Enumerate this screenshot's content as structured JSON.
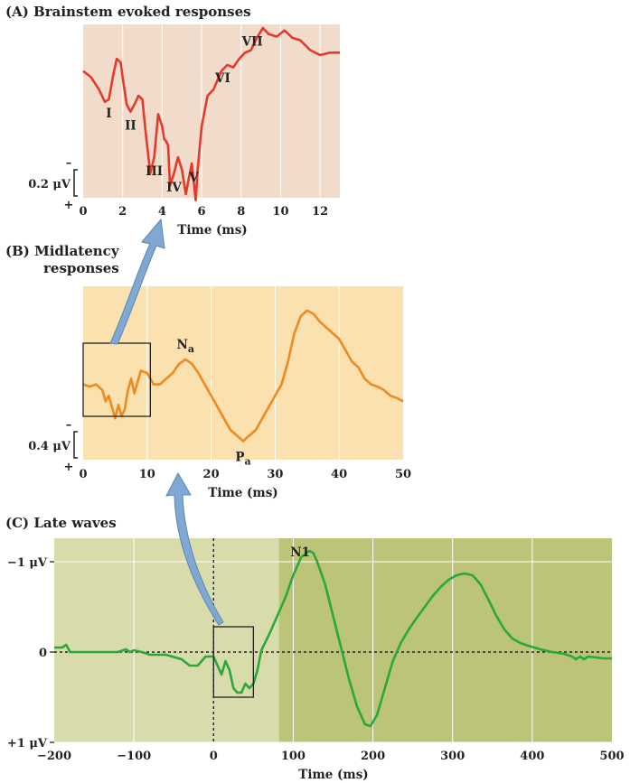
{
  "colors": {
    "panel_a_bg": "#f1dccb",
    "panel_a_line": "#e4392c",
    "panel_b_bg": "#fbe0b0",
    "panel_b_line": "#ef8a1e",
    "panel_c_bg_left": "#d8dcaa",
    "panel_c_bg_right": "#bcc47a",
    "panel_c_line": "#2aa83a",
    "arrow": "#7fa9d2",
    "grid": "#ffffff"
  },
  "chart_data": [
    {
      "type": "line",
      "title": "(A)  Brainstem evoked responses",
      "xlabel": "Time (ms)",
      "xlim": [
        0,
        13
      ],
      "x_ticks": [
        "0",
        "2",
        "4",
        "6",
        "8",
        "10",
        "12"
      ],
      "scale_bar": {
        "label": "0.2 μV",
        "top_sign": "–",
        "bottom_sign": "+"
      },
      "ylim": [
        -0.55,
        0.8
      ],
      "series": [
        {
          "x": [
            0,
            0.4,
            0.8,
            1.1,
            1.3,
            1.5,
            1.7,
            1.9,
            2.0,
            2.2,
            2.4,
            2.6,
            2.8,
            3.0,
            3.2,
            3.4,
            3.6,
            3.8,
            4.0,
            4.1,
            4.2,
            4.3,
            4.4,
            4.6,
            4.8,
            5.0,
            5.2,
            5.4,
            5.5,
            5.7,
            5.8,
            6.0,
            6.3,
            6.6,
            7.0,
            7.3,
            7.6,
            7.9,
            8.2,
            8.5,
            8.8,
            9.1,
            9.4,
            9.8,
            10.2,
            10.6,
            11.0,
            11.5,
            12.0,
            12.5,
            13.0
          ],
          "y": [
            0.45,
            0.4,
            0.3,
            0.2,
            0.22,
            0.4,
            0.55,
            0.52,
            0.4,
            0.18,
            0.12,
            0.18,
            0.25,
            0.22,
            -0.1,
            -0.38,
            -0.25,
            0.1,
            0.0,
            -0.1,
            -0.12,
            -0.15,
            -0.48,
            -0.38,
            -0.25,
            -0.35,
            -0.55,
            -0.38,
            -0.3,
            -0.6,
            -0.35,
            0.0,
            0.25,
            0.3,
            0.45,
            0.5,
            0.48,
            0.55,
            0.6,
            0.62,
            0.72,
            0.8,
            0.75,
            0.73,
            0.78,
            0.72,
            0.7,
            0.62,
            0.58,
            0.6,
            0.6
          ]
        }
      ],
      "annotations": [
        {
          "label": "I",
          "x": 1.3
        },
        {
          "label": "II",
          "x": 2.4
        },
        {
          "label": "III",
          "x": 3.6
        },
        {
          "label": "IV",
          "x": 4.6
        },
        {
          "label": "V",
          "x": 5.6
        },
        {
          "label": "VI",
          "x": 6.7
        },
        {
          "label": "VII",
          "x": 8.2
        }
      ]
    },
    {
      "type": "line",
      "title": "(B)  Midlatency",
      "title_line2": "responses",
      "xlabel": "Time (ms)",
      "xlim": [
        0,
        50
      ],
      "x_ticks": [
        "0",
        "10",
        "20",
        "30",
        "40",
        "50"
      ],
      "scale_bar": {
        "label": "0.4 μV",
        "top_sign": "–",
        "bottom_sign": "+"
      },
      "ylim": [
        -0.6,
        0.8
      ],
      "series": [
        {
          "x": [
            0,
            1,
            2,
            3,
            3.5,
            4,
            4.5,
            5,
            5.5,
            6,
            6.5,
            7,
            7.5,
            8,
            8.5,
            9,
            10,
            11,
            12,
            13,
            14,
            15,
            16,
            17,
            18,
            19,
            20,
            21,
            22,
            23,
            24,
            25,
            26,
            27,
            28,
            29,
            30,
            31,
            32,
            33,
            34,
            35,
            36,
            37,
            38,
            39,
            40,
            41,
            42,
            43,
            44,
            45,
            46,
            47,
            48,
            49,
            50
          ],
          "y": [
            0.0,
            -0.02,
            0.0,
            -0.05,
            -0.15,
            -0.1,
            -0.2,
            -0.3,
            -0.18,
            -0.28,
            -0.22,
            -0.05,
            0.05,
            -0.08,
            0.02,
            0.12,
            0.1,
            0.0,
            0.0,
            0.05,
            0.1,
            0.18,
            0.22,
            0.18,
            0.1,
            0.0,
            -0.1,
            -0.2,
            -0.3,
            -0.4,
            -0.45,
            -0.5,
            -0.45,
            -0.4,
            -0.3,
            -0.2,
            -0.1,
            0.0,
            0.2,
            0.45,
            0.6,
            0.65,
            0.62,
            0.55,
            0.5,
            0.45,
            0.4,
            0.3,
            0.2,
            0.15,
            0.05,
            0.0,
            -0.02,
            -0.05,
            -0.1,
            -0.12,
            -0.15
          ]
        }
      ],
      "annotations": [
        {
          "label": "N",
          "subscript": "a",
          "x": 16
        },
        {
          "label": "P",
          "subscript": "a",
          "x": 25
        }
      ],
      "inset_box": {
        "x_from": 0,
        "x_to": 10.5
      }
    },
    {
      "type": "line",
      "title": "(C)  Late waves",
      "xlabel": "Time (ms)",
      "xlim": [
        -200,
        500
      ],
      "ylim": [
        1,
        -1.1
      ],
      "y_inverted": true,
      "x_ticks": [
        "−200",
        "−100",
        "0",
        "100",
        "200",
        "300",
        "400",
        "500"
      ],
      "y_ticks": [
        {
          "value": -1,
          "label": "−1 μV"
        },
        {
          "value": 0,
          "label": "0"
        },
        {
          "value": 1,
          "label": "+1 μV"
        }
      ],
      "stimulus_onset": 0,
      "shade_boundary_x": 82,
      "series": [
        {
          "x": [
            -200,
            -190,
            -185,
            -180,
            -170,
            -160,
            -150,
            -120,
            -110,
            -105,
            -100,
            -90,
            -80,
            -60,
            -40,
            -30,
            -20,
            -10,
            0,
            5,
            10,
            15,
            20,
            25,
            30,
            35,
            40,
            45,
            50,
            55,
            60,
            70,
            80,
            90,
            100,
            110,
            120,
            125,
            130,
            140,
            150,
            160,
            170,
            180,
            190,
            197,
            205,
            215,
            225,
            235,
            245,
            255,
            265,
            275,
            285,
            295,
            305,
            315,
            325,
            335,
            345,
            355,
            365,
            375,
            385,
            395,
            410,
            425,
            440,
            450,
            455,
            460,
            465,
            470,
            480,
            490,
            500
          ],
          "y": [
            -0.05,
            -0.05,
            -0.08,
            0.0,
            0.0,
            0.0,
            0.0,
            0.0,
            -0.03,
            0.0,
            -0.02,
            0.0,
            0.03,
            0.03,
            0.08,
            0.15,
            0.15,
            0.05,
            0.05,
            0.15,
            0.25,
            0.1,
            0.2,
            0.4,
            0.45,
            0.45,
            0.35,
            0.4,
            0.35,
            0.2,
            -0.02,
            -0.2,
            -0.4,
            -0.6,
            -0.85,
            -1.05,
            -1.12,
            -1.1,
            -1.0,
            -0.75,
            -0.4,
            -0.05,
            0.3,
            0.6,
            0.8,
            0.82,
            0.7,
            0.4,
            0.1,
            -0.1,
            -0.25,
            -0.38,
            -0.5,
            -0.62,
            -0.72,
            -0.8,
            -0.85,
            -0.87,
            -0.85,
            -0.75,
            -0.58,
            -0.4,
            -0.25,
            -0.15,
            -0.1,
            -0.07,
            -0.03,
            0.0,
            0.02,
            0.05,
            0.08,
            0.05,
            0.08,
            0.05,
            0.06,
            0.07,
            0.07
          ]
        }
      ],
      "annotations": [
        {
          "label": "N1",
          "x": 120
        }
      ],
      "inset_box": {
        "x_from": 0,
        "x_to": 50,
        "y_from": -0.28,
        "y_to": 0.5
      }
    }
  ]
}
